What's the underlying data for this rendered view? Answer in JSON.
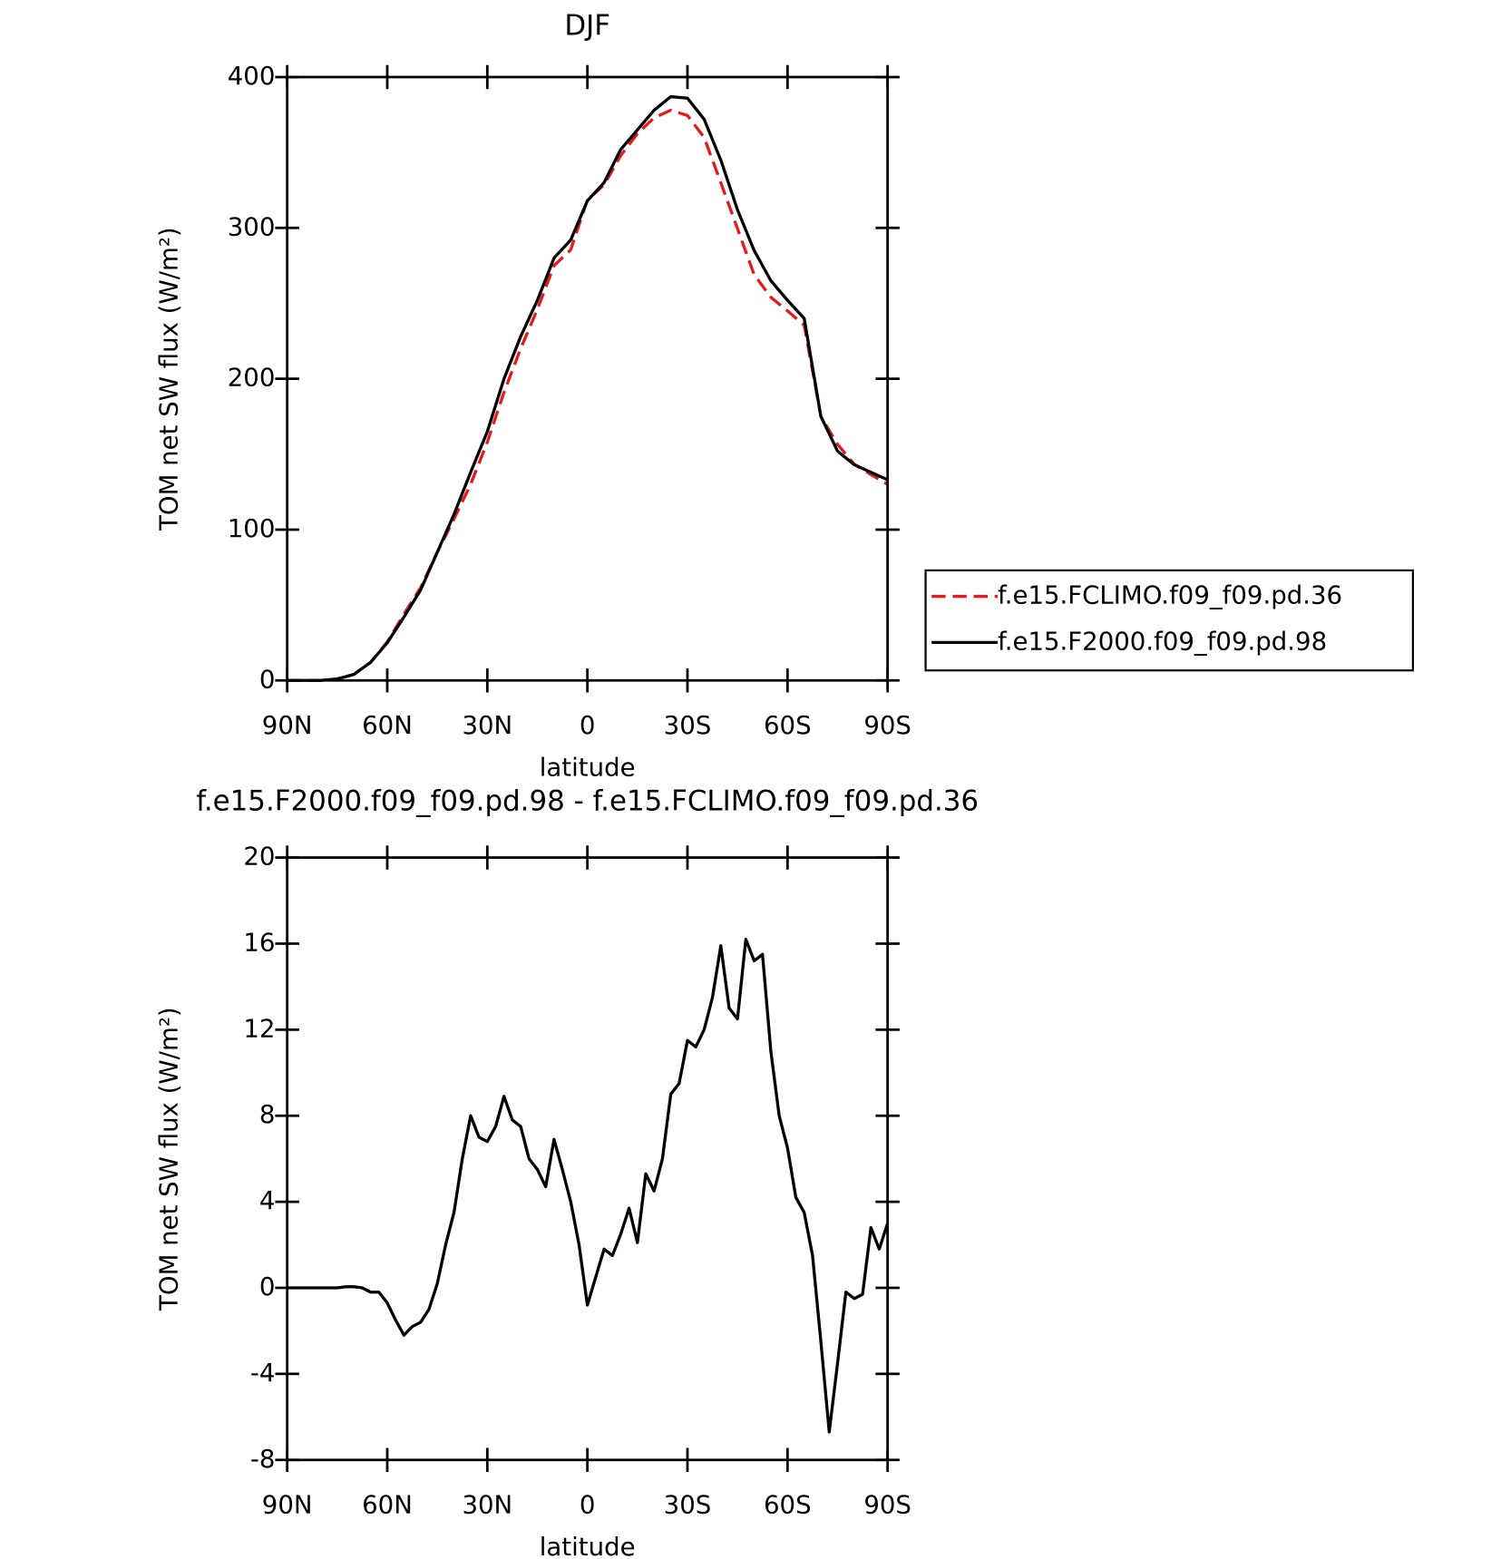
{
  "chart_data": [
    {
      "type": "line",
      "title": "DJF",
      "xlabel": "latitude",
      "ylabel": "TOM net SW flux (W/m²)",
      "x": [
        90,
        85,
        80,
        75,
        70,
        65,
        60,
        55,
        50,
        45,
        40,
        35,
        30,
        25,
        20,
        15,
        10,
        5,
        0,
        -5,
        -10,
        -15,
        -20,
        -25,
        -30,
        -35,
        -40,
        -45,
        -50,
        -55,
        -60,
        -65,
        -70,
        -75,
        -80,
        -85,
        -90
      ],
      "series": [
        {
          "name": "f.e15.FCLIMO.f09_f09.pd.36",
          "color": "#e41a1c",
          "line_style": "dashed",
          "values": [
            0,
            0,
            0,
            1,
            4,
            12,
            25.5,
            44,
            61.5,
            85,
            107,
            130,
            158,
            191,
            220,
            246,
            275,
            285.5,
            318.5,
            328.5,
            348,
            362.5,
            373,
            378,
            374.5,
            360,
            330,
            299.5,
            269,
            254,
            245,
            235.5,
            175,
            156.5,
            143.3,
            136.5,
            130
          ]
        },
        {
          "name": "f.e15.F2000.f09_f09.pd.98",
          "color": "#000000",
          "line_style": "solid",
          "values": [
            0,
            0,
            0,
            1,
            4,
            12,
            25,
            42,
            60,
            85,
            110,
            138,
            165,
            200,
            228,
            252,
            280,
            292,
            318,
            330,
            352,
            365,
            378,
            387,
            386,
            372,
            345,
            312,
            285,
            265,
            252,
            240,
            175,
            152,
            143,
            138,
            133
          ]
        }
      ],
      "xlim": [
        90,
        -90
      ],
      "xticks": [
        {
          "value": 90,
          "label": "90N"
        },
        {
          "value": 60,
          "label": "60N"
        },
        {
          "value": 30,
          "label": "30N"
        },
        0,
        {
          "value": -30,
          "label": "30S"
        },
        {
          "value": -60,
          "label": "60S"
        },
        {
          "value": -90,
          "label": "90S"
        }
      ],
      "ylim": [
        0,
        400
      ],
      "yticks": [
        0,
        100,
        200,
        300,
        400
      ],
      "legend_position": "right"
    },
    {
      "type": "line",
      "title": "f.e15.F2000.f09_f09.pd.98 - f.e15.FCLIMO.f09_f09.pd.36",
      "xlabel": "latitude",
      "ylabel": "TOM net SW flux (W/m²)",
      "x": [
        90,
        87.5,
        85,
        82.5,
        80,
        77.5,
        75,
        72.5,
        70,
        67.5,
        65,
        62.5,
        60,
        57.5,
        55,
        52.5,
        50,
        47.5,
        45,
        42.5,
        40,
        37.5,
        35,
        32.5,
        30,
        27.5,
        25,
        22.5,
        20,
        17.5,
        15,
        12.5,
        10,
        7.5,
        5,
        2.5,
        0,
        -2.5,
        -5,
        -7.5,
        -10,
        -12.5,
        -15,
        -17.5,
        -20,
        -22.5,
        -25,
        -27.5,
        -30,
        -32.5,
        -35,
        -37.5,
        -40,
        -42.5,
        -45,
        -47.5,
        -50,
        -52.5,
        -55,
        -57.5,
        -60,
        -62.5,
        -65,
        -67.5,
        -70,
        -72.5,
        -75,
        -77.5,
        -80,
        -82.5,
        -85,
        -87.5,
        -90
      ],
      "series": [
        {
          "color": "#000000",
          "line_style": "solid",
          "values": [
            0,
            0,
            0,
            0,
            0,
            0,
            0,
            0.05,
            0.05,
            0,
            -0.2,
            -0.2,
            -0.7,
            -1.5,
            -2.2,
            -1.8,
            -1.6,
            -1.0,
            0.2,
            2.0,
            3.5,
            6.0,
            8.0,
            7.0,
            6.8,
            7.5,
            8.9,
            7.8,
            7.5,
            6.0,
            5.5,
            4.7,
            6.9,
            5.5,
            4.0,
            2.0,
            -0.8,
            0.5,
            1.8,
            1.5,
            2.5,
            3.7,
            2.1,
            5.3,
            4.5,
            6.0,
            9.0,
            9.5,
            11.5,
            11.2,
            12.0,
            13.5,
            15.9,
            13.0,
            12.5,
            16.2,
            15.2,
            15.5,
            11.0,
            8.0,
            6.5,
            4.2,
            3.5,
            1.5,
            -2.5,
            -6.7,
            -3.5,
            -0.2,
            -0.5,
            -0.3,
            2.8,
            1.8,
            3.0
          ]
        }
      ],
      "xlim": [
        90,
        -90
      ],
      "xticks": [
        {
          "value": 90,
          "label": "90N"
        },
        {
          "value": 60,
          "label": "60N"
        },
        {
          "value": 30,
          "label": "30N"
        },
        0,
        {
          "value": -30,
          "label": "30S"
        },
        {
          "value": -60,
          "label": "60S"
        },
        {
          "value": -90,
          "label": "90S"
        }
      ],
      "ylim": [
        -8,
        20
      ],
      "yticks": [
        -8,
        -4,
        0,
        4,
        8,
        12,
        16,
        20
      ]
    }
  ]
}
